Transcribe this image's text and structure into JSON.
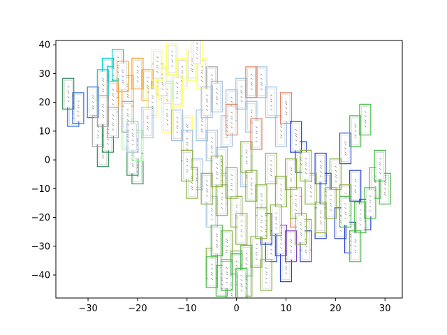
{
  "chart_data": {
    "type": "scatter",
    "title": "",
    "xlabel": "",
    "ylabel": "",
    "xlim": [
      -36.5,
      33.5
    ],
    "ylim": [
      -48,
      41.5
    ],
    "x_ticks": [
      -30,
      -20,
      -10,
      0,
      10,
      20,
      30
    ],
    "y_ticks": [
      -40,
      -30,
      -20,
      -10,
      0,
      10,
      20,
      30,
      40
    ],
    "x_tick_labels": [
      "−30",
      "−20",
      "−10",
      "0",
      "10",
      "20",
      "30"
    ],
    "y_tick_labels": [
      "−40",
      "−30",
      "−20",
      "−10",
      "0",
      "10",
      "20",
      "30",
      "40"
    ],
    "grid": false,
    "marker": "image thumbnail framed by colored rectangle",
    "clusters": [
      {
        "color": "#2b6bd6",
        "points": [
          [
            -33,
            17
          ],
          [
            -32,
            18
          ],
          [
            -29,
            20
          ]
        ]
      },
      {
        "color": "#2e8b57",
        "points": [
          [
            -34,
            23
          ],
          [
            -27,
            3
          ],
          [
            -26,
            8
          ],
          [
            -20,
            -3
          ],
          [
            -21,
            0
          ]
        ]
      },
      {
        "color": "#9aff9a",
        "points": [
          [
            -20,
            5
          ],
          [
            -22,
            9
          ],
          [
            -14,
            22
          ]
        ]
      },
      {
        "color": "#00cccc",
        "points": [
          [
            -26,
            30
          ],
          [
            -25,
            27
          ],
          [
            -27,
            26
          ],
          [
            -24,
            33
          ]
        ]
      },
      {
        "color": "#f0a030",
        "points": [
          [
            -25,
            22
          ],
          [
            -22,
            24
          ],
          [
            -18,
            26
          ],
          [
            -20,
            30
          ],
          [
            -23,
            29
          ]
        ]
      },
      {
        "color": "#a0a0a0",
        "points": [
          [
            -28,
            10
          ],
          [
            -25,
            13
          ],
          [
            -22,
            15
          ],
          [
            -27,
            17
          ],
          [
            -16,
            28
          ],
          [
            -5,
            27
          ]
        ]
      },
      {
        "color": "#ffff66",
        "points": [
          [
            -13,
            35
          ],
          [
            -11,
            30
          ],
          [
            -9,
            33
          ],
          [
            -15,
            27
          ],
          [
            -7,
            30
          ],
          [
            -17,
            20
          ],
          [
            -12,
            24
          ],
          [
            -14,
            15
          ],
          [
            -10,
            10
          ],
          [
            -16,
            33
          ],
          [
            -8,
            38
          ]
        ]
      },
      {
        "color": "#a0c0e0",
        "points": [
          [
            -21,
            8
          ],
          [
            -18,
            13
          ],
          [
            -12,
            12
          ],
          [
            -10,
            5
          ],
          [
            -7,
            12
          ],
          [
            -5,
            5
          ],
          [
            -3,
            -1
          ],
          [
            -2,
            10
          ],
          [
            -1,
            19
          ],
          [
            1,
            23
          ],
          [
            3,
            15
          ],
          [
            5,
            27
          ],
          [
            7,
            20
          ],
          [
            9,
            10
          ],
          [
            -4,
            22
          ],
          [
            -6,
            20
          ],
          [
            -8,
            -5
          ],
          [
            -3,
            -10
          ],
          [
            -5,
            -18
          ],
          [
            2,
            -4
          ]
        ]
      },
      {
        "color": "#e08060",
        "points": [
          [
            10,
            18
          ],
          [
            3,
            27
          ],
          [
            4,
            9
          ],
          [
            12,
            -18
          ],
          [
            14,
            -26
          ],
          [
            -1,
            14
          ]
        ]
      },
      {
        "color": "#2040d0",
        "points": [
          [
            10,
            -37
          ],
          [
            7,
            -30
          ],
          [
            14,
            -30
          ],
          [
            18,
            -10
          ],
          [
            21,
            -22
          ],
          [
            24,
            -9
          ],
          [
            26,
            -19
          ],
          [
            17,
            -3
          ],
          [
            22,
            4
          ],
          [
            13,
            1
          ],
          [
            12,
            8
          ],
          [
            17,
            -22
          ],
          [
            6,
            -24
          ],
          [
            23,
            -27
          ]
        ]
      },
      {
        "color": "#8040c0",
        "points": [
          [
            9,
            -28
          ],
          [
            11,
            -30
          ]
        ]
      },
      {
        "color": "#88b040",
        "points": [
          [
            -9,
            -8
          ],
          [
            -6,
            -10
          ],
          [
            -3,
            -14
          ],
          [
            0,
            -18
          ],
          [
            1,
            -24
          ],
          [
            3,
            -9
          ],
          [
            5,
            -14
          ],
          [
            7,
            -3
          ],
          [
            9,
            -11
          ],
          [
            11,
            -5
          ],
          [
            12,
            -15
          ],
          [
            15,
            -10
          ],
          [
            17,
            -20
          ],
          [
            20,
            -5
          ],
          [
            22,
            -14
          ],
          [
            -2,
            -30
          ],
          [
            0,
            -37
          ],
          [
            2,
            -42
          ],
          [
            -5,
            -36
          ],
          [
            4,
            -32
          ],
          [
            6,
            -40
          ],
          [
            -10,
            -2
          ],
          [
            -4,
            -4
          ],
          [
            8,
            -21
          ],
          [
            13,
            -24
          ],
          [
            19,
            -15
          ],
          [
            14,
            -2
          ],
          [
            2,
            1
          ],
          [
            -1,
            -8
          ],
          [
            5,
            -22
          ]
        ]
      },
      {
        "color": "#44bb44",
        "points": [
          [
            0,
            -38
          ],
          [
            -3,
            -42
          ],
          [
            -1,
            -45
          ],
          [
            -5,
            -39
          ],
          [
            2,
            -35
          ],
          [
            24,
            10
          ],
          [
            26,
            14
          ],
          [
            28,
            -8
          ],
          [
            30,
            -10
          ],
          [
            25,
            -20
          ],
          [
            27,
            -15
          ],
          [
            24,
            -30
          ],
          [
            22,
            -18
          ],
          [
            29,
            -2
          ],
          [
            -4,
            -28
          ],
          [
            1,
            -43
          ],
          [
            -2,
            -40
          ]
        ]
      }
    ]
  }
}
